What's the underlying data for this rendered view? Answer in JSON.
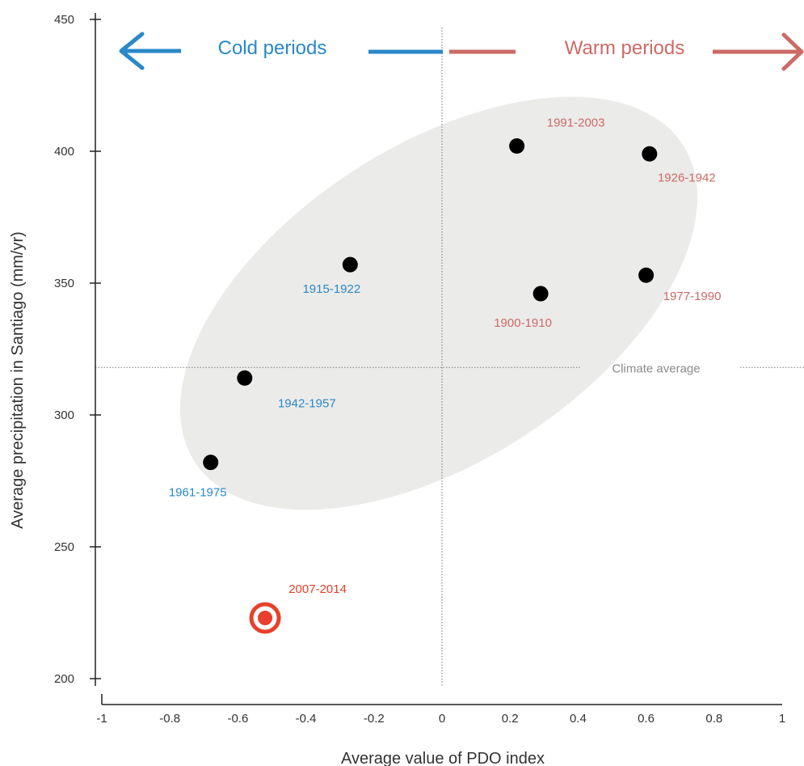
{
  "chart_data": {
    "type": "scatter",
    "title": "",
    "xlabel": "Average value of PDO index",
    "ylabel": "Average precipitation in Santiago (mm/yr)",
    "xlim": [
      -1,
      1
    ],
    "ylim": [
      200,
      450
    ],
    "x_ticks": [
      "-1",
      "-0.8",
      "-0.6",
      "-0.4",
      "-0.2",
      "0",
      "0.2",
      "0.4",
      "0.6",
      "0.8",
      "1"
    ],
    "x_tick_values": [
      -1,
      -0.8,
      -0.6,
      -0.4,
      -0.2,
      0,
      0.2,
      0.4,
      0.6,
      0.8,
      1
    ],
    "y_ticks": [
      "200",
      "250",
      "300",
      "350",
      "400",
      "450"
    ],
    "y_tick_values": [
      200,
      250,
      300,
      350,
      400,
      450
    ],
    "grid": false,
    "climate_average": {
      "label": "Climate average",
      "value": 318
    },
    "cold_label": "Cold periods",
    "warm_label": "Warm periods",
    "colors": {
      "cold": "#2a88c8",
      "warm": "#cc6a66",
      "highlight": "#e8402c",
      "point": "#000000",
      "ellipse": "#ebebea",
      "axis": "#222222",
      "reference_line": "#8a8a8a"
    },
    "points": [
      {
        "label": "1900-1910",
        "x": 0.29,
        "y": 346,
        "group": "warm"
      },
      {
        "label": "1915-1922",
        "x": -0.27,
        "y": 357,
        "group": "cold"
      },
      {
        "label": "1926-1942",
        "x": 0.61,
        "y": 399,
        "group": "warm"
      },
      {
        "label": "1942-1957",
        "x": -0.58,
        "y": 314,
        "group": "cold"
      },
      {
        "label": "1961-1975",
        "x": -0.68,
        "y": 282,
        "group": "cold"
      },
      {
        "label": "1977-1990",
        "x": 0.6,
        "y": 353,
        "group": "warm"
      },
      {
        "label": "1991-2003",
        "x": 0.22,
        "y": 402,
        "group": "warm"
      },
      {
        "label": "2007-2014",
        "x": -0.52,
        "y": 223,
        "group": "highlight"
      }
    ]
  }
}
